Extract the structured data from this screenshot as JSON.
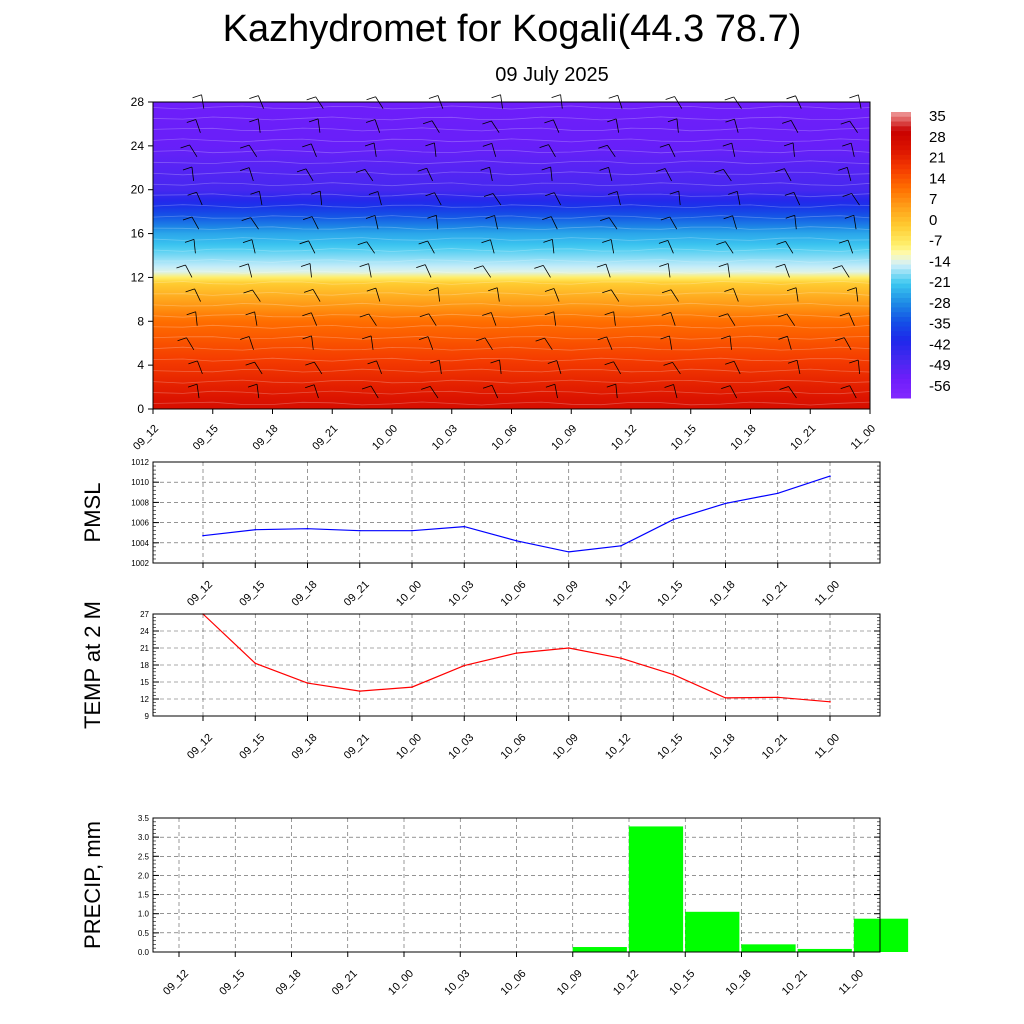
{
  "title": "Kazhydromet for Kogali(44.3 78.7)",
  "subtitle": "09 July 2025",
  "time_labels": [
    "09_12",
    "09_15",
    "09_18",
    "09_21",
    "10_00",
    "10_03",
    "10_06",
    "10_09",
    "10_12",
    "10_15",
    "10_18",
    "10_21",
    "11_00"
  ],
  "chart_data": [
    {
      "type": "heatmap",
      "name": "vertical-temperature-wind",
      "x": [
        "09_12",
        "09_15",
        "09_18",
        "09_21",
        "10_00",
        "10_03",
        "10_06",
        "10_09",
        "10_12",
        "10_15",
        "10_18",
        "10_21",
        "11_00"
      ],
      "yticks": [
        0,
        4,
        8,
        12,
        16,
        20,
        24,
        28
      ],
      "ylim": [
        0,
        28
      ],
      "colorbar_labels": [
        "35",
        "28",
        "21",
        "14",
        "7",
        "0",
        "-7",
        "-14",
        "-21",
        "-28",
        "-35",
        "-42",
        "-49",
        "-56"
      ],
      "colorbar_range": [
        -63,
        42
      ],
      "approx_temperature_profile": [
        [
          0,
          30
        ],
        [
          4,
          22
        ],
        [
          8,
          14
        ],
        [
          11.5,
          0
        ],
        [
          12.5,
          -13
        ],
        [
          16,
          -25
        ],
        [
          20,
          -49
        ],
        [
          24,
          -55
        ],
        [
          28,
          -56
        ]
      ]
    },
    {
      "type": "line",
      "name": "pmsl",
      "ylabel": "PMSL",
      "x": [
        "09_12",
        "09_15",
        "09_18",
        "09_21",
        "10_00",
        "10_03",
        "10_06",
        "10_09",
        "10_12",
        "10_15",
        "10_18",
        "10_21",
        "11_00"
      ],
      "values": [
        1004.7,
        1005.3,
        1005.4,
        1005.2,
        1005.2,
        1005.6,
        1004.2,
        1003.1,
        1003.7,
        1006.3,
        1007.9,
        1008.9,
        1010.6
      ],
      "ylim": [
        1002,
        1012
      ],
      "yticks": [
        1002,
        1004,
        1006,
        1008,
        1010,
        1012
      ],
      "color": "#0000ff"
    },
    {
      "type": "line",
      "name": "temp-2m",
      "ylabel": "TEMP at 2 M",
      "x": [
        "09_12",
        "09_15",
        "09_18",
        "09_21",
        "10_00",
        "10_03",
        "10_06",
        "10_09",
        "10_12",
        "10_15",
        "10_18",
        "10_21",
        "11_00"
      ],
      "values": [
        27.0,
        18.3,
        14.8,
        13.4,
        14.1,
        17.9,
        20.1,
        21.0,
        19.2,
        16.3,
        12.2,
        12.3,
        11.5
      ],
      "ylim": [
        9,
        27
      ],
      "yticks": [
        9,
        12,
        15,
        18,
        21,
        24,
        27
      ],
      "color": "#ff0000"
    },
    {
      "type": "bar",
      "name": "precip",
      "ylabel": "PRECIP, mm",
      "x": [
        "09_12",
        "09_15",
        "09_18",
        "09_21",
        "10_00",
        "10_03",
        "10_06",
        "10_09",
        "10_12",
        "10_15",
        "10_18",
        "10_21",
        "11_00"
      ],
      "values": [
        0,
        0,
        0,
        0,
        0,
        0,
        0,
        0.13,
        3.28,
        1.05,
        0.2,
        0.08,
        0.87
      ],
      "ylim": [
        0,
        3.5
      ],
      "yticks": [
        "0.0",
        "0.5",
        "1.0",
        "1.5",
        "2.0",
        "2.5",
        "3.0",
        "3.5"
      ],
      "color": "#00ff00"
    }
  ]
}
